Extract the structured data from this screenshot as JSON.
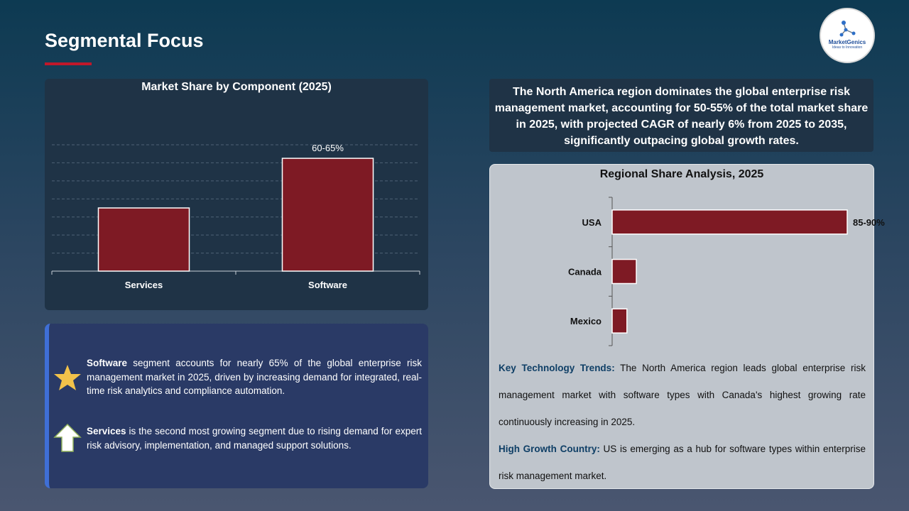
{
  "page": {
    "title": "Segmental Focus"
  },
  "logo": {
    "name": "MarketGenics",
    "tagline": "Ideas to Innovation"
  },
  "colors": {
    "bar": "#7e1a24",
    "accent_underline": "#c0182a",
    "panel_dark": "#1f3346",
    "panel_blue": "#2a3a66",
    "panel_light": "#bfc5cc",
    "label_blue": "#0f3f66",
    "star": "#f2c24a"
  },
  "highlight": {
    "text": "The North America region dominates the global enterprise risk management market, accounting for 50-55% of the total market share in 2025, with projected CAGR of nearly 6% from 2025 to 2035, significantly outpacing global growth rates."
  },
  "info": {
    "software": {
      "icon": "star-icon",
      "bold": "Software",
      "text": " segment accounts for nearly 65% of the global enterprise risk management market in 2025, driven by increasing demand for integrated, real-time risk analytics and compliance automation."
    },
    "services": {
      "icon": "up-arrow-icon",
      "bold": "Services",
      "text": " is the second most growing segment due to rising demand for expert risk advisory, implementation, and managed support solutions."
    }
  },
  "trends": {
    "key_label": "Key Technology Trends:",
    "key_text": " The North America region leads global enterprise risk management market with software types with Canada's highest growing rate continuously increasing in 2025.",
    "growth_label": "High Growth Country:",
    "growth_text": " US is emerging as a hub for software types within enterprise risk management market."
  },
  "chart_data": [
    {
      "type": "bar",
      "title": "Market Share by Component (2025)",
      "categories": [
        "Services",
        "Software"
      ],
      "values": [
        35,
        62.5
      ],
      "data_labels": [
        "",
        "60-65%"
      ],
      "ylim": [
        0,
        70
      ],
      "grid": true,
      "legend": "none"
    },
    {
      "type": "bar",
      "orientation": "horizontal",
      "title": "Regional Share Analysis, 2025",
      "categories": [
        "USA",
        "Canada",
        "Mexico"
      ],
      "values": [
        87.5,
        9,
        5.5
      ],
      "data_labels": [
        "85-90%",
        "",
        ""
      ],
      "xlim": [
        0,
        100
      ],
      "grid": false,
      "legend": "none"
    }
  ]
}
